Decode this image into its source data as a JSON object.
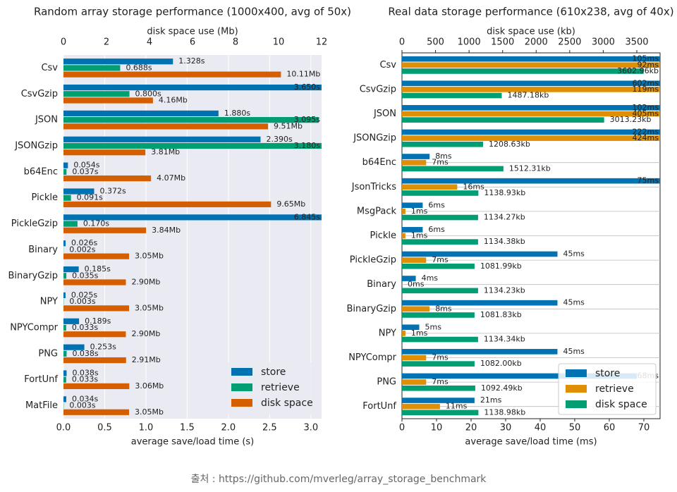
{
  "chart_data": [
    {
      "type": "bar",
      "orientation": "horizontal",
      "title": "Random array storage performance (1000x400, avg of 50x)",
      "xlabel": "average save/load time (s)",
      "x2label": "disk space use (Mb)",
      "categories": [
        "Csv",
        "CsvGzip",
        "JSON",
        "JSONGzip",
        "b64Enc",
        "Pickle",
        "PickleGzip",
        "Binary",
        "BinaryGzip",
        "NPY",
        "NPYCompr",
        "PNG",
        "FortUnf",
        "MatFile"
      ],
      "series": [
        {
          "name": "store",
          "color": "#0072b2",
          "axis": "x",
          "values": [
            1.328,
            3.65,
            1.88,
            2.39,
            0.054,
            0.372,
            6.845,
            0.026,
            0.185,
            0.025,
            0.189,
            0.253,
            0.038,
            0.034
          ],
          "value_labels": [
            "1.328s",
            "3.650s",
            "1.880s",
            "2.390s",
            "0.054s",
            "0.372s",
            "6.845s",
            "0.026s",
            "0.185s",
            "0.025s",
            "0.189s",
            "0.253s",
            "0.038s",
            "0.034s"
          ]
        },
        {
          "name": "retrieve",
          "color": "#009e73",
          "axis": "x",
          "values": [
            0.688,
            0.8,
            3.095,
            3.18,
            0.037,
            0.091,
            0.17,
            0.002,
            0.035,
            0.003,
            0.033,
            0.038,
            0.033,
            0.003
          ],
          "value_labels": [
            "0.688s",
            "0.800s",
            "3.095s",
            "3.180s",
            "0.037s",
            "0.091s",
            "0.170s",
            "0.002s",
            "0.035s",
            "0.003s",
            "0.033s",
            "0.038s",
            "0.033s",
            "0.003s"
          ]
        },
        {
          "name": "disk space",
          "color": "#d55e00",
          "axis": "x2",
          "values": [
            10.11,
            4.16,
            9.51,
            3.81,
            4.07,
            9.65,
            3.84,
            3.05,
            2.9,
            3.05,
            2.9,
            2.91,
            3.06,
            3.05
          ],
          "value_labels": [
            "10.11Mb",
            "4.16Mb",
            "9.51Mb",
            "3.81Mb",
            "4.07Mb",
            "9.65Mb",
            "3.84Mb",
            "3.05Mb",
            "2.90Mb",
            "3.05Mb",
            "2.90Mb",
            "2.91Mb",
            "3.06Mb",
            "3.05Mb"
          ]
        }
      ],
      "xlim": [
        0,
        3.13
      ],
      "xticks": [
        {
          "value": 0,
          "label": "0.0"
        },
        0.5,
        {
          "value": 1,
          "label": "1.0"
        },
        1.5,
        {
          "value": 2,
          "label": "2.0"
        },
        2.5,
        {
          "value": 3,
          "label": "3.0"
        }
      ],
      "x2lim": [
        0,
        12
      ],
      "x2ticks": [
        0,
        2,
        4,
        6,
        8,
        10,
        12
      ],
      "grid": "x",
      "background": "#eaeaf2",
      "legend": "lower right"
    },
    {
      "type": "bar",
      "orientation": "horizontal",
      "title": "Real data storage performance (610x238, avg of 40x)",
      "xlabel": "average save/load time (ms)",
      "x2label": "disk space use (kb)",
      "categories": [
        "Csv",
        "CsvGzip",
        "JSON",
        "JSONGzip",
        "b64Enc",
        "JsonTricks",
        "MsgPack",
        "Pickle",
        "PickleGzip",
        "Binary",
        "BinaryGzip",
        "NPY",
        "NPYCompr",
        "PNG",
        "FortUnf"
      ],
      "series": [
        {
          "name": "store",
          "color": "#0173b2",
          "axis": "x",
          "values": [
            105,
            602,
            102,
            222,
            8,
            75,
            6,
            6,
            45,
            4,
            45,
            5,
            45,
            68,
            21
          ],
          "value_labels": [
            "105ms",
            "602ms",
            "102ms",
            "222ms",
            "8ms",
            "75ms",
            "6ms",
            "6ms",
            "45ms",
            "4ms",
            "45ms",
            "5ms",
            "45ms",
            "68ms",
            "21ms"
          ]
        },
        {
          "name": "retrieve",
          "color": "#de8f05",
          "axis": "x",
          "values": [
            92,
            119,
            405,
            424,
            7,
            16,
            1,
            1,
            7,
            0,
            8,
            1,
            7,
            7,
            11
          ],
          "value_labels": [
            "92ms",
            "119ms",
            "405ms",
            "424ms",
            "7ms",
            "16ms",
            "1ms",
            "1ms",
            "7ms",
            "0ms",
            "8ms",
            "1ms",
            "7ms",
            "7ms",
            "11ms"
          ]
        },
        {
          "name": "disk space",
          "color": "#029e73",
          "axis": "x2",
          "values": [
            3602.96,
            1487.18,
            3013.23,
            1208.63,
            1512.31,
            1138.93,
            1134.27,
            1134.38,
            1081.99,
            1134.23,
            1081.83,
            1134.34,
            1082.0,
            1092.49,
            1138.98
          ],
          "value_labels": [
            "3602.96kb",
            "1487.18kb",
            "3013.23kb",
            "1208.63kb",
            "1512.31kb",
            "1138.93kb",
            "1134.27kb",
            "1134.38kb",
            "1081.99kb",
            "1134.23kb",
            "1081.83kb",
            "1134.34kb",
            "1082.00kb",
            "1092.49kb",
            "1138.98kb"
          ]
        }
      ],
      "xlim": [
        0,
        74.7
      ],
      "xticks": [
        0,
        10,
        20,
        30,
        40,
        50,
        60,
        70
      ],
      "x2lim": [
        0,
        3847
      ],
      "x2ticks": [
        0,
        500,
        1000,
        1500,
        2000,
        2500,
        3000,
        3500
      ],
      "grid": "y",
      "background": "#ffffff",
      "legend": "lower right"
    }
  ],
  "footer": "출처 : https://github.com/mverleg/array_storage_benchmark"
}
